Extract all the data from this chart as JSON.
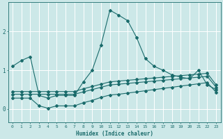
{
  "xlabel": "Humidex (Indice chaleur)",
  "background_color": "#cce8e8",
  "grid_color": "#ffffff",
  "line_color": "#1a6b6b",
  "xlim": [
    -0.5,
    23.5
  ],
  "ylim": [
    -0.35,
    2.75
  ],
  "yticks": [
    0,
    1,
    2
  ],
  "xticks": [
    0,
    1,
    2,
    3,
    4,
    5,
    6,
    7,
    8,
    9,
    10,
    11,
    12,
    13,
    14,
    15,
    16,
    17,
    18,
    19,
    20,
    21,
    22,
    23
  ],
  "series": [
    {
      "x": [
        0,
        1,
        2,
        3,
        4,
        5,
        6,
        7,
        8,
        9,
        10,
        11,
        12,
        13,
        14,
        15,
        16,
        17,
        18,
        19,
        20,
        21,
        22,
        23
      ],
      "y": [
        1.1,
        1.25,
        1.35,
        0.35,
        0.28,
        0.35,
        0.35,
        0.35,
        0.7,
        1.0,
        1.65,
        2.55,
        2.42,
        2.28,
        1.85,
        1.3,
        1.1,
        1.0,
        0.88,
        0.82,
        0.78,
        1.0,
        0.62,
        0.5
      ]
    },
    {
      "x": [
        0,
        1,
        2,
        3,
        4,
        5,
        6,
        7,
        8,
        9,
        10,
        11,
        12,
        13,
        14,
        15,
        16,
        17,
        18,
        19,
        20,
        21,
        22,
        23
      ],
      "y": [
        0.38,
        0.38,
        0.38,
        0.38,
        0.38,
        0.38,
        0.38,
        0.38,
        0.44,
        0.5,
        0.56,
        0.62,
        0.64,
        0.66,
        0.68,
        0.7,
        0.72,
        0.74,
        0.76,
        0.78,
        0.8,
        0.82,
        0.84,
        0.56
      ]
    },
    {
      "x": [
        0,
        1,
        2,
        3,
        4,
        5,
        6,
        7,
        8,
        9,
        10,
        11,
        12,
        13,
        14,
        15,
        16,
        17,
        18,
        19,
        20,
        21,
        22,
        23
      ],
      "y": [
        0.28,
        0.28,
        0.28,
        0.08,
        0.02,
        0.08,
        0.08,
        0.08,
        0.16,
        0.22,
        0.3,
        0.36,
        0.38,
        0.41,
        0.44,
        0.47,
        0.5,
        0.53,
        0.56,
        0.59,
        0.62,
        0.65,
        0.68,
        0.43
      ]
    },
    {
      "x": [
        0,
        1,
        2,
        3,
        4,
        5,
        6,
        7,
        8,
        9,
        10,
        11,
        12,
        13,
        14,
        15,
        16,
        17,
        18,
        19,
        20,
        21,
        22,
        23
      ],
      "y": [
        0.45,
        0.45,
        0.45,
        0.45,
        0.45,
        0.45,
        0.45,
        0.45,
        0.52,
        0.58,
        0.64,
        0.7,
        0.72,
        0.74,
        0.76,
        0.78,
        0.8,
        0.82,
        0.84,
        0.86,
        0.88,
        0.9,
        0.92,
        0.62
      ]
    }
  ]
}
